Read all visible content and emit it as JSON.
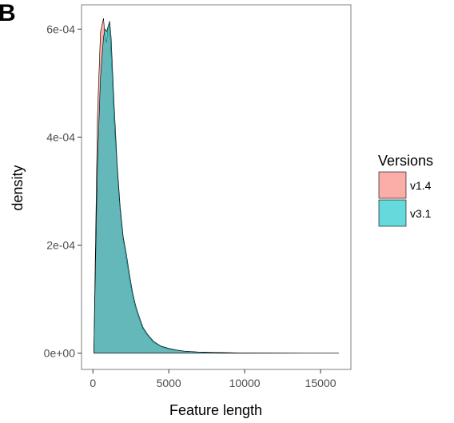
{
  "panel_tag": "B",
  "chart_data": {
    "type": "area",
    "xlabel": "Feature length",
    "ylabel": "density",
    "xlim": [
      -750,
      17000
    ],
    "ylim": [
      -3e-05,
      0.000645
    ],
    "x_ticks": [
      0,
      5000,
      10000,
      15000
    ],
    "x_tick_labels": [
      "0",
      "5000",
      "10000",
      "15000"
    ],
    "y_ticks": [
      0,
      0.0002,
      0.0004,
      0.0006
    ],
    "y_tick_labels": [
      "0e+00",
      "2e-04",
      "4e-04",
      "6e-04"
    ],
    "grid": false,
    "legend": {
      "title": "Versions",
      "position": "right"
    },
    "series": [
      {
        "name": "v1.4",
        "color": "#F8766D",
        "x": [
          60,
          300,
          500,
          700,
          800,
          900,
          1000,
          1100,
          1200,
          1400,
          1600,
          1800,
          2000,
          2200,
          2400,
          2600,
          2800,
          3000,
          3300,
          3600,
          4000,
          4500,
          5000,
          5500,
          6000,
          7000,
          8000,
          9000,
          10000,
          12000,
          14000,
          16200
        ],
        "y": [
          0,
          0.00044,
          0.000595,
          0.00062,
          0.000585,
          0.000575,
          0.000605,
          0.00061,
          0.000555,
          0.00043,
          0.00034,
          0.00026,
          0.00021,
          0.000175,
          0.00014,
          0.000108,
          8.5e-05,
          6.7e-05,
          4.5e-05,
          3.3e-05,
          2e-05,
          1.2e-05,
          8e-06,
          5.5e-06,
          3.5e-06,
          2e-06,
          1.2e-06,
          8e-07,
          5e-07,
          2e-07,
          1e-07,
          0
        ]
      },
      {
        "name": "v3.1",
        "color": "#00BFC4",
        "x": [
          60,
          300,
          500,
          700,
          800,
          900,
          1000,
          1100,
          1200,
          1400,
          1600,
          1800,
          2000,
          2200,
          2400,
          2600,
          2800,
          3000,
          3300,
          3600,
          4000,
          4500,
          5000,
          5500,
          6000,
          7000,
          8000,
          9000,
          10000,
          12000,
          14000,
          16200
        ],
        "y": [
          0,
          0.00035,
          0.00051,
          0.000585,
          0.0006,
          0.000595,
          0.000605,
          0.000615,
          0.000585,
          0.00046,
          0.00035,
          0.00027,
          0.000215,
          0.000185,
          0.000148,
          0.000115,
          9e-05,
          7.2e-05,
          4.8e-05,
          3.5e-05,
          2.2e-05,
          1.3e-05,
          9e-06,
          6e-06,
          4e-06,
          2.2e-06,
          1.3e-06,
          8e-07,
          5e-07,
          2e-07,
          1e-07,
          0
        ]
      }
    ]
  }
}
